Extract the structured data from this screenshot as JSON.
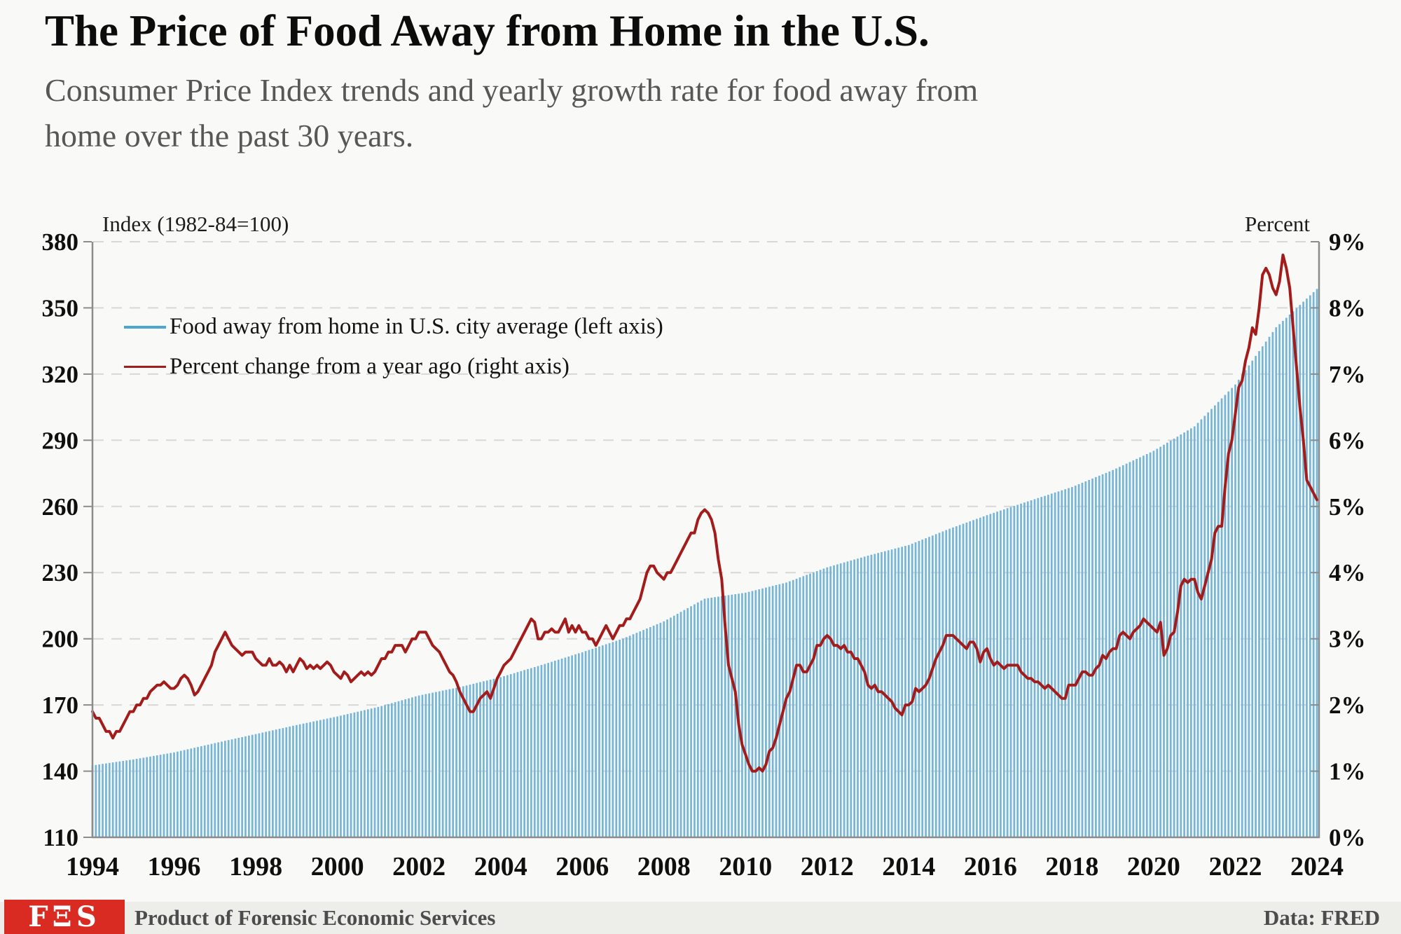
{
  "header": {
    "title": "The Price of Food Away from Home in the U.S.",
    "subtitle_line1": "Consumer Price Index trends and yearly growth rate for food away from",
    "subtitle_line2": "home over the past 30 years."
  },
  "chart": {
    "left_axis_title": "Index (1982-84=100)",
    "right_axis_title": "Percent",
    "legend": [
      {
        "label": "Food away from home in U.S. city average (left axis)",
        "color": "#4aa8d0"
      },
      {
        "label": "Percent change from a year ago (right axis)",
        "color": "#a21c1c"
      }
    ]
  },
  "chart_data": {
    "type": "bar+line",
    "title": "The Price of Food Away from Home in the U.S.",
    "x_start": "1994-01",
    "freq": "monthly",
    "x_tick_labels": [
      "1994",
      "1996",
      "1998",
      "2000",
      "2002",
      "2004",
      "2006",
      "2008",
      "2010",
      "2012",
      "2014",
      "2016",
      "2018",
      "2020",
      "2022",
      "2024"
    ],
    "left_axis": {
      "label": "Index (1982-84=100)",
      "ylim": [
        110,
        380
      ],
      "tick_values": [
        110,
        140,
        170,
        200,
        230,
        260,
        290,
        320,
        350,
        380
      ],
      "tick_labels": [
        "110",
        "140",
        "170",
        "200",
        "230",
        "260",
        "290",
        "320",
        "350",
        "380"
      ]
    },
    "right_axis": {
      "label": "Percent",
      "ylim": [
        0,
        9
      ],
      "tick_values": [
        0,
        1,
        2,
        3,
        4,
        5,
        6,
        7,
        8,
        9
      ],
      "tick_labels": [
        "0%",
        "1%",
        "2%",
        "3%",
        "4%",
        "5%",
        "6%",
        "7%",
        "8%",
        "9%"
      ]
    },
    "series": [
      {
        "name": "Food away from home in U.S. city average",
        "axis": "left",
        "type": "bar",
        "color": "#76b5d5",
        "note": "monthly bars Jan 1994 - Jan 2024; January keypoint values, intermediate months interpolated",
        "index_january_values": [
          142.6,
          145.3,
          148.5,
          152.7,
          156.8,
          160.9,
          164.8,
          169.1,
          174.3,
          178.1,
          182.6,
          188.1,
          193.9,
          200.1,
          207.9,
          218.2,
          220.9,
          225.5,
          232.4,
          237.7,
          242.5,
          249.9,
          256.6,
          262.8,
          268.8,
          276.5,
          285.2,
          296.3,
          315.3,
          341.2,
          358.6
        ]
      },
      {
        "name": "Percent change from a year ago",
        "axis": "right",
        "type": "line",
        "color": "#a21c1c",
        "values_monthly": [
          1.9,
          1.8,
          1.8,
          1.7,
          1.6,
          1.6,
          1.5,
          1.6,
          1.6,
          1.7,
          1.8,
          1.9,
          1.9,
          2.0,
          2.0,
          2.1,
          2.1,
          2.2,
          2.25,
          2.3,
          2.3,
          2.35,
          2.3,
          2.25,
          2.25,
          2.3,
          2.4,
          2.45,
          2.4,
          2.3,
          2.15,
          2.2,
          2.3,
          2.4,
          2.5,
          2.6,
          2.8,
          2.9,
          3.0,
          3.1,
          3.0,
          2.9,
          2.85,
          2.8,
          2.75,
          2.8,
          2.8,
          2.8,
          2.7,
          2.65,
          2.6,
          2.6,
          2.7,
          2.6,
          2.6,
          2.65,
          2.6,
          2.5,
          2.6,
          2.5,
          2.6,
          2.7,
          2.65,
          2.55,
          2.6,
          2.55,
          2.6,
          2.55,
          2.6,
          2.65,
          2.6,
          2.5,
          2.45,
          2.4,
          2.5,
          2.45,
          2.35,
          2.4,
          2.45,
          2.5,
          2.45,
          2.5,
          2.45,
          2.5,
          2.6,
          2.7,
          2.7,
          2.8,
          2.8,
          2.9,
          2.9,
          2.9,
          2.8,
          2.9,
          3.0,
          3.0,
          3.1,
          3.1,
          3.1,
          3.0,
          2.9,
          2.85,
          2.8,
          2.7,
          2.6,
          2.5,
          2.45,
          2.35,
          2.2,
          2.1,
          2.0,
          1.9,
          1.9,
          2.0,
          2.1,
          2.15,
          2.2,
          2.1,
          2.25,
          2.4,
          2.5,
          2.6,
          2.65,
          2.7,
          2.8,
          2.9,
          3.0,
          3.1,
          3.2,
          3.3,
          3.25,
          3.0,
          3.0,
          3.1,
          3.1,
          3.15,
          3.1,
          3.1,
          3.2,
          3.3,
          3.1,
          3.2,
          3.1,
          3.2,
          3.1,
          3.1,
          3.0,
          3.0,
          2.9,
          3.0,
          3.1,
          3.2,
          3.1,
          3.0,
          3.1,
          3.2,
          3.2,
          3.3,
          3.3,
          3.4,
          3.5,
          3.6,
          3.8,
          4.0,
          4.1,
          4.1,
          4.0,
          3.95,
          3.9,
          4.0,
          4.0,
          4.1,
          4.2,
          4.3,
          4.4,
          4.5,
          4.6,
          4.6,
          4.8,
          4.9,
          4.95,
          4.9,
          4.8,
          4.6,
          4.2,
          3.9,
          3.2,
          2.6,
          2.4,
          2.2,
          1.7,
          1.4,
          1.25,
          1.1,
          1.0,
          1.0,
          1.05,
          1.0,
          1.1,
          1.3,
          1.35,
          1.5,
          1.7,
          1.9,
          2.1,
          2.2,
          2.4,
          2.6,
          2.6,
          2.5,
          2.5,
          2.6,
          2.7,
          2.9,
          2.9,
          3.0,
          3.05,
          3.0,
          2.9,
          2.9,
          2.85,
          2.9,
          2.8,
          2.8,
          2.7,
          2.7,
          2.6,
          2.5,
          2.3,
          2.25,
          2.3,
          2.2,
          2.2,
          2.15,
          2.1,
          2.05,
          1.95,
          1.9,
          1.85,
          2.0,
          2.0,
          2.05,
          2.25,
          2.2,
          2.25,
          2.3,
          2.4,
          2.55,
          2.7,
          2.8,
          2.9,
          3.05,
          3.05,
          3.05,
          3.0,
          2.95,
          2.9,
          2.85,
          2.95,
          2.95,
          2.85,
          2.65,
          2.8,
          2.85,
          2.7,
          2.6,
          2.65,
          2.6,
          2.55,
          2.6,
          2.6,
          2.6,
          2.6,
          2.5,
          2.45,
          2.4,
          2.4,
          2.35,
          2.35,
          2.3,
          2.25,
          2.3,
          2.25,
          2.2,
          2.15,
          2.1,
          2.1,
          2.3,
          2.3,
          2.3,
          2.4,
          2.5,
          2.5,
          2.45,
          2.45,
          2.55,
          2.6,
          2.75,
          2.7,
          2.8,
          2.85,
          2.85,
          3.05,
          3.1,
          3.05,
          3.0,
          3.1,
          3.15,
          3.2,
          3.3,
          3.25,
          3.2,
          3.15,
          3.1,
          3.25,
          2.75,
          2.85,
          3.05,
          3.1,
          3.4,
          3.8,
          3.9,
          3.85,
          3.9,
          3.9,
          3.7,
          3.6,
          3.8,
          4.0,
          4.2,
          4.6,
          4.7,
          4.7,
          5.3,
          5.8,
          6.0,
          6.4,
          6.8,
          6.9,
          7.2,
          7.4,
          7.7,
          7.6,
          8.0,
          8.5,
          8.6,
          8.5,
          8.3,
          8.2,
          8.4,
          8.8,
          8.6,
          8.3,
          7.7,
          7.1,
          6.5,
          6.0,
          5.4,
          5.3,
          5.2,
          5.1
        ]
      }
    ],
    "grid": "dashed horizontal",
    "legend_position": "upper left inside plot"
  },
  "footer": {
    "logo_text": "FΞS",
    "logo_bg": "#d92b21",
    "credit": "Product of Forensic Economic Services",
    "source": "Data: FRED"
  }
}
